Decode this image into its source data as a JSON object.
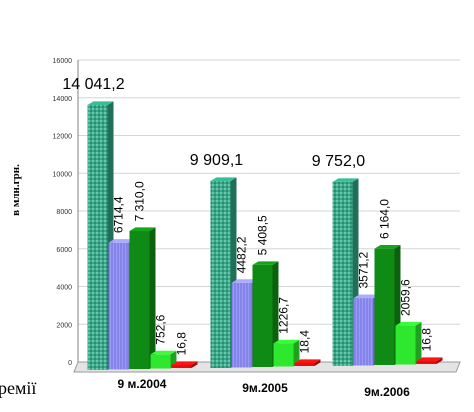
{
  "chart_data": {
    "type": "bar",
    "ylabel": "в млн.грн.",
    "ylim": [
      0,
      16000
    ],
    "yticks": [
      0,
      2000,
      4000,
      6000,
      8000,
      10000,
      12000,
      14000,
      16000
    ],
    "grid": true,
    "categories": [
      "9 м.2004",
      "9м.2005",
      "9м.2006"
    ],
    "series": [
      {
        "values": [
          14041.2,
          9909.1,
          9752.0
        ],
        "labels": [
          "14 041,2",
          "9 909,1",
          "9 752,0"
        ],
        "color": "#2f9e7e"
      },
      {
        "values": [
          6714.4,
          4482.2,
          3571.2
        ],
        "labels": [
          "6714,4",
          "4482,2",
          "3571,2"
        ],
        "color": "#8f8ff0"
      },
      {
        "values": [
          7310.0,
          5408.5,
          6164.0
        ],
        "labels": [
          "7 310,0",
          "5 408,5",
          "6 164,0"
        ],
        "color": "#0f8a14"
      },
      {
        "values": [
          752.6,
          1226.7,
          2059.6
        ],
        "labels": [
          "752,6",
          "1226,7",
          "2059,6"
        ],
        "color": "#2ee82e"
      },
      {
        "values": [
          16.8,
          18.4,
          16.8
        ],
        "labels": [
          "16,8",
          "18,4",
          "16,8"
        ],
        "color": "#e01010"
      }
    ]
  },
  "fragment_text": "ремії"
}
